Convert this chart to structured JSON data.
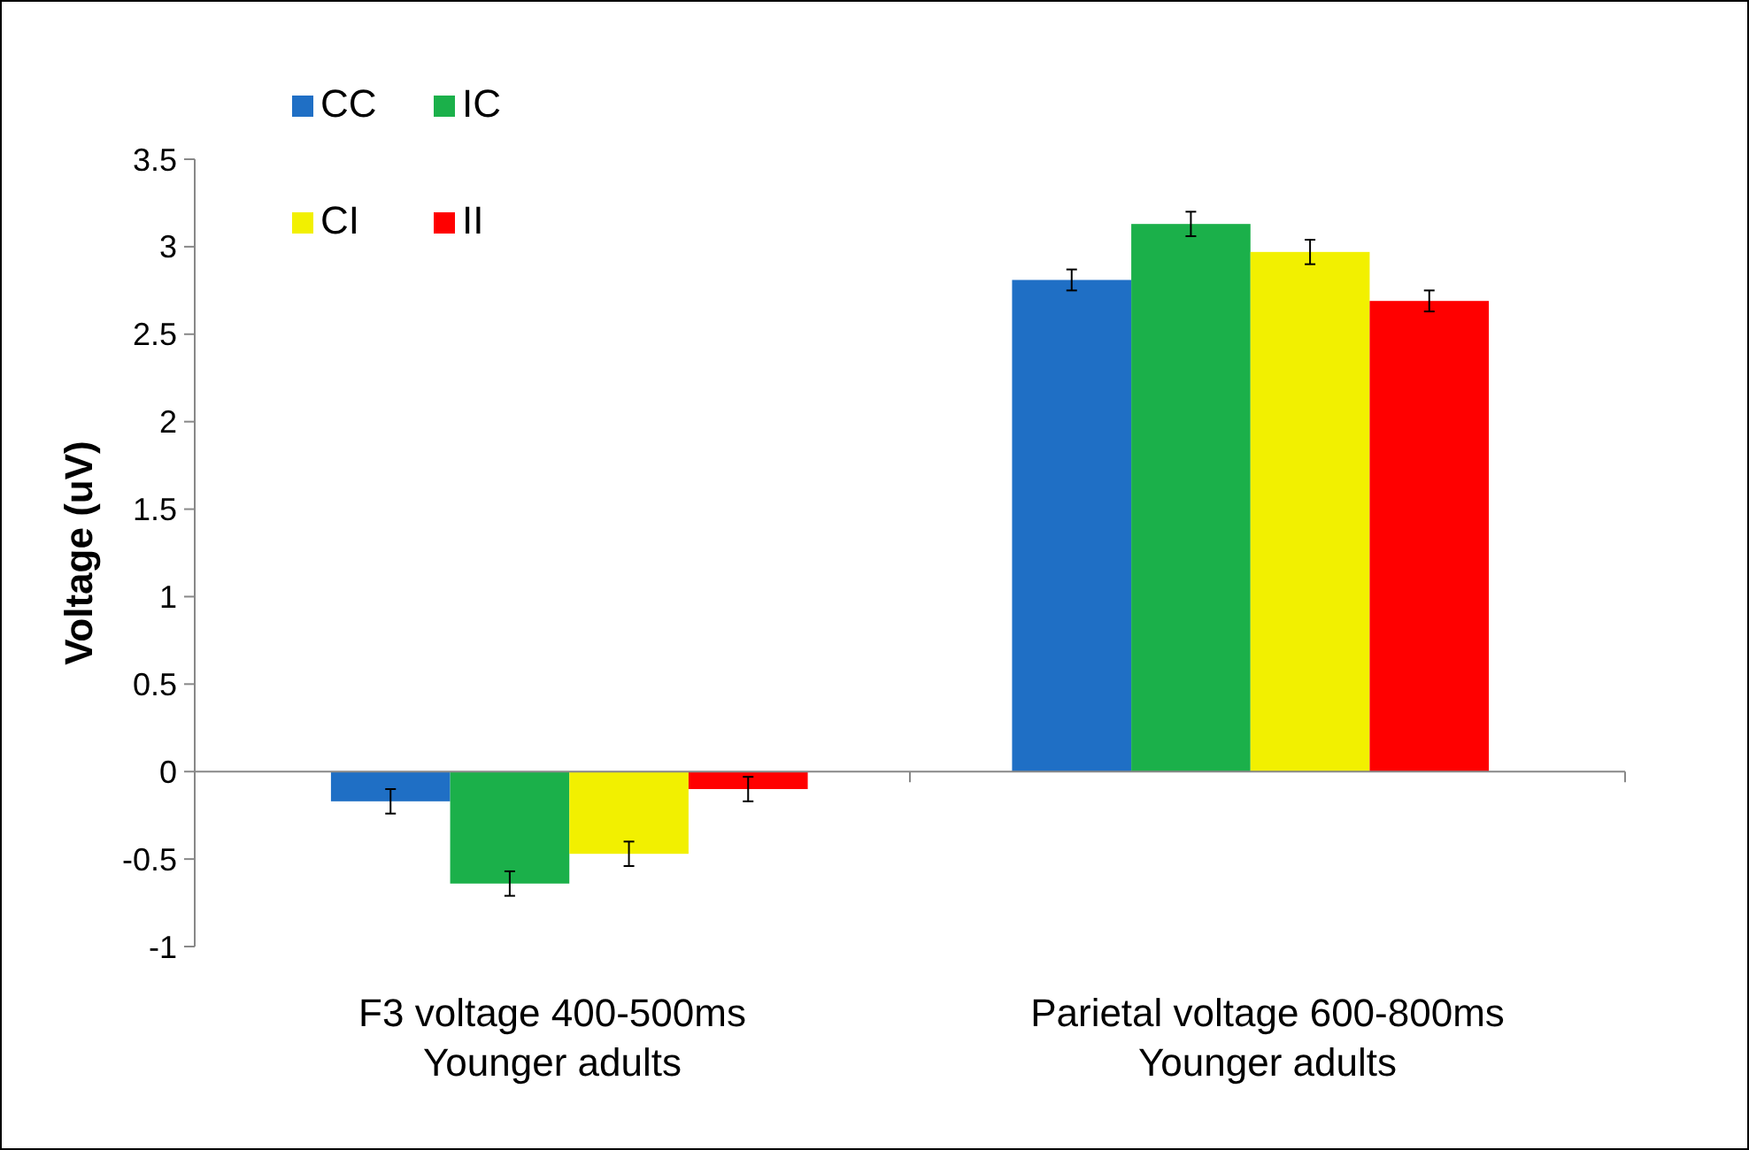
{
  "chart_data": {
    "type": "bar",
    "ylabel": "Voltage (uV)",
    "categories": [
      "F3 voltage 400-500ms\nYounger adults",
      "Parietal voltage 600-800ms\nYounger adults"
    ],
    "series": [
      {
        "name": "CC",
        "color": "#1f6fc5",
        "values": [
          -0.17,
          2.81
        ],
        "errors": [
          0.07,
          0.06
        ]
      },
      {
        "name": "IC",
        "color": "#1bb04a",
        "values": [
          -0.64,
          3.13
        ],
        "errors": [
          0.07,
          0.07
        ]
      },
      {
        "name": "CI",
        "color": "#f2f000",
        "values": [
          -0.47,
          2.97
        ],
        "errors": [
          0.07,
          0.07
        ]
      },
      {
        "name": "II",
        "color": "#ff0000",
        "values": [
          -0.1,
          2.69
        ],
        "errors": [
          0.07,
          0.06
        ]
      }
    ],
    "ylim": [
      -1,
      3.5
    ],
    "yticks": [
      -1,
      -0.5,
      0,
      0.5,
      1,
      1.5,
      2,
      2.5,
      3,
      3.5
    ],
    "legend": "top left"
  }
}
